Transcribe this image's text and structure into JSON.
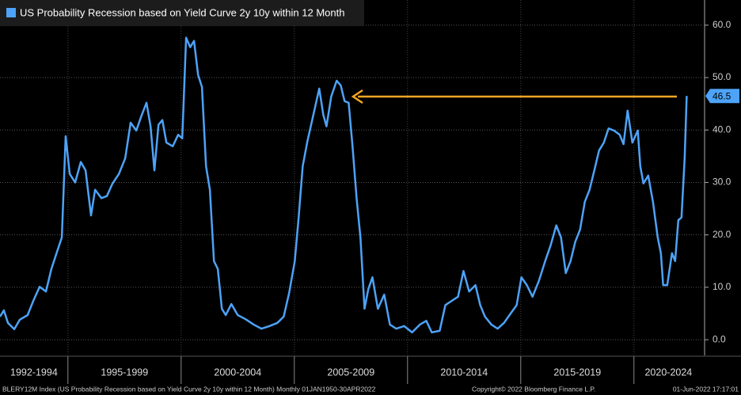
{
  "chart_data": {
    "type": "line",
    "source": "BLERY12M Index (US Probability Recession based on Yield Curve 2y 10y within 12 Month)  Monthly 01JAN1950-30APR2022",
    "copyright": "Copyright© 2022 Bloomberg Finance L.P.",
    "timestamp": "01-Jun-2022 17:17:01",
    "x": [
      1992,
      1992.17,
      1992.35,
      1992.63,
      1992.87,
      1993.22,
      1993.47,
      1993.75,
      1994.03,
      1994.27,
      1994.52,
      1994.73,
      1994.9,
      1995.08,
      1995.32,
      1995.57,
      1995.78,
      1996.02,
      1996.2,
      1996.48,
      1996.72,
      1996.97,
      1997.25,
      1997.53,
      1997.77,
      1998.02,
      1998.23,
      1998.47,
      1998.65,
      1998.82,
      1999.0,
      1999.17,
      1999.35,
      1999.63,
      1999.87,
      2000.05,
      2000.22,
      2000.4,
      2000.57,
      2000.75,
      2000.92,
      2001.1,
      2001.27,
      2001.45,
      2001.62,
      2001.8,
      2001.97,
      2002.22,
      2002.5,
      2002.85,
      2003.2,
      2003.55,
      2003.9,
      2004.25,
      2004.53,
      2004.77,
      2005.02,
      2005.19,
      2005.37,
      2005.58,
      2005.82,
      2006.1,
      2006.28,
      2006.42,
      2006.63,
      2006.87,
      2007.05,
      2007.22,
      2007.4,
      2007.57,
      2007.75,
      2007.92,
      2008.1,
      2008.27,
      2008.45,
      2008.69,
      2008.97,
      2009.22,
      2009.5,
      2009.85,
      2010.2,
      2010.55,
      2010.83,
      2011.07,
      2011.42,
      2011.67,
      2011.95,
      2012.23,
      2012.47,
      2012.72,
      2013.0,
      2013.21,
      2013.42,
      2013.7,
      2013.98,
      2014.26,
      2014.57,
      2014.82,
      2015.03,
      2015.27,
      2015.52,
      2015.8,
      2016.08,
      2016.32,
      2016.57,
      2016.78,
      2016.99,
      2017.2,
      2017.41,
      2017.62,
      2017.83,
      2018.04,
      2018.25,
      2018.46,
      2018.67,
      2018.88,
      2019.12,
      2019.37,
      2019.54,
      2019.72,
      2019.93,
      2020.17,
      2020.28,
      2020.42,
      2020.63,
      2020.84,
      2021.05,
      2021.19,
      2021.29,
      2021.47,
      2021.68,
      2021.82,
      2021.96,
      2022.1,
      2022.24,
      2022.33
    ],
    "series": [
      {
        "name": "US Probability Recession based on Yield Curve 2y 10y within 12 Month",
        "color": "#4da3f7",
        "values": [
          4.4,
          5.6,
          3.2,
          2.0,
          3.8,
          4.7,
          7.4,
          10.1,
          9.2,
          13.5,
          16.8,
          19.5,
          38.8,
          31.6,
          30.0,
          33.9,
          32.3,
          23.7,
          28.6,
          27.0,
          27.4,
          29.8,
          31.6,
          34.6,
          41.4,
          39.9,
          42.5,
          45.2,
          40.7,
          32.3,
          41.0,
          41.9,
          37.6,
          36.9,
          39.1,
          38.4,
          57.6,
          55.8,
          57.0,
          50.5,
          48.2,
          33.1,
          28.6,
          15.0,
          13.5,
          5.9,
          4.7,
          6.8,
          4.7,
          3.9,
          2.9,
          2.1,
          2.6,
          3.2,
          4.4,
          8.9,
          15.0,
          23.3,
          33.1,
          37.9,
          42.5,
          47.9,
          42.9,
          40.7,
          46.4,
          49.4,
          48.5,
          45.5,
          45.2,
          36.9,
          27.0,
          19.5,
          5.9,
          9.7,
          11.9,
          5.9,
          8.6,
          2.9,
          2.1,
          2.6,
          1.4,
          2.9,
          3.6,
          1.4,
          1.7,
          6.6,
          7.4,
          8.2,
          13.1,
          9.2,
          10.4,
          6.6,
          4.4,
          2.9,
          2.1,
          3.2,
          5.1,
          6.6,
          11.9,
          10.4,
          8.2,
          11.2,
          15.0,
          18.0,
          21.8,
          19.5,
          12.7,
          15.0,
          18.7,
          21.0,
          26.3,
          28.6,
          32.3,
          36.1,
          37.6,
          40.3,
          39.9,
          39.1,
          37.3,
          43.7,
          37.6,
          39.9,
          33.1,
          29.8,
          31.3,
          26.3,
          19.5,
          16.5,
          10.4,
          10.4,
          16.5,
          15.0,
          22.8,
          23.3,
          34.6,
          46.5
        ]
      }
    ],
    "xlim": [
      1992,
      2023.05
    ],
    "xticks": [
      {
        "value": 1992,
        "label": "1992-1994"
      },
      {
        "value": 1995,
        "label": "1995-1999"
      },
      {
        "value": 2000,
        "label": "2000-2004"
      },
      {
        "value": 2005,
        "label": "2005-2009"
      },
      {
        "value": 2010,
        "label": "2010-2014"
      },
      {
        "value": 2015,
        "label": "2015-2019"
      },
      {
        "value": 2020,
        "label": "2020-2024"
      }
    ],
    "ylim": [
      -3,
      64.8
    ],
    "yticks": [
      {
        "value": 0,
        "label": "0.0"
      },
      {
        "value": 10,
        "label": "10.0"
      },
      {
        "value": 20,
        "label": "20.0"
      },
      {
        "value": 30,
        "label": "30.0"
      },
      {
        "value": 40,
        "label": "40.0"
      },
      {
        "value": 50,
        "label": "50.0"
      },
      {
        "value": 60,
        "label": "60.0"
      }
    ],
    "grid": true
  }
}
